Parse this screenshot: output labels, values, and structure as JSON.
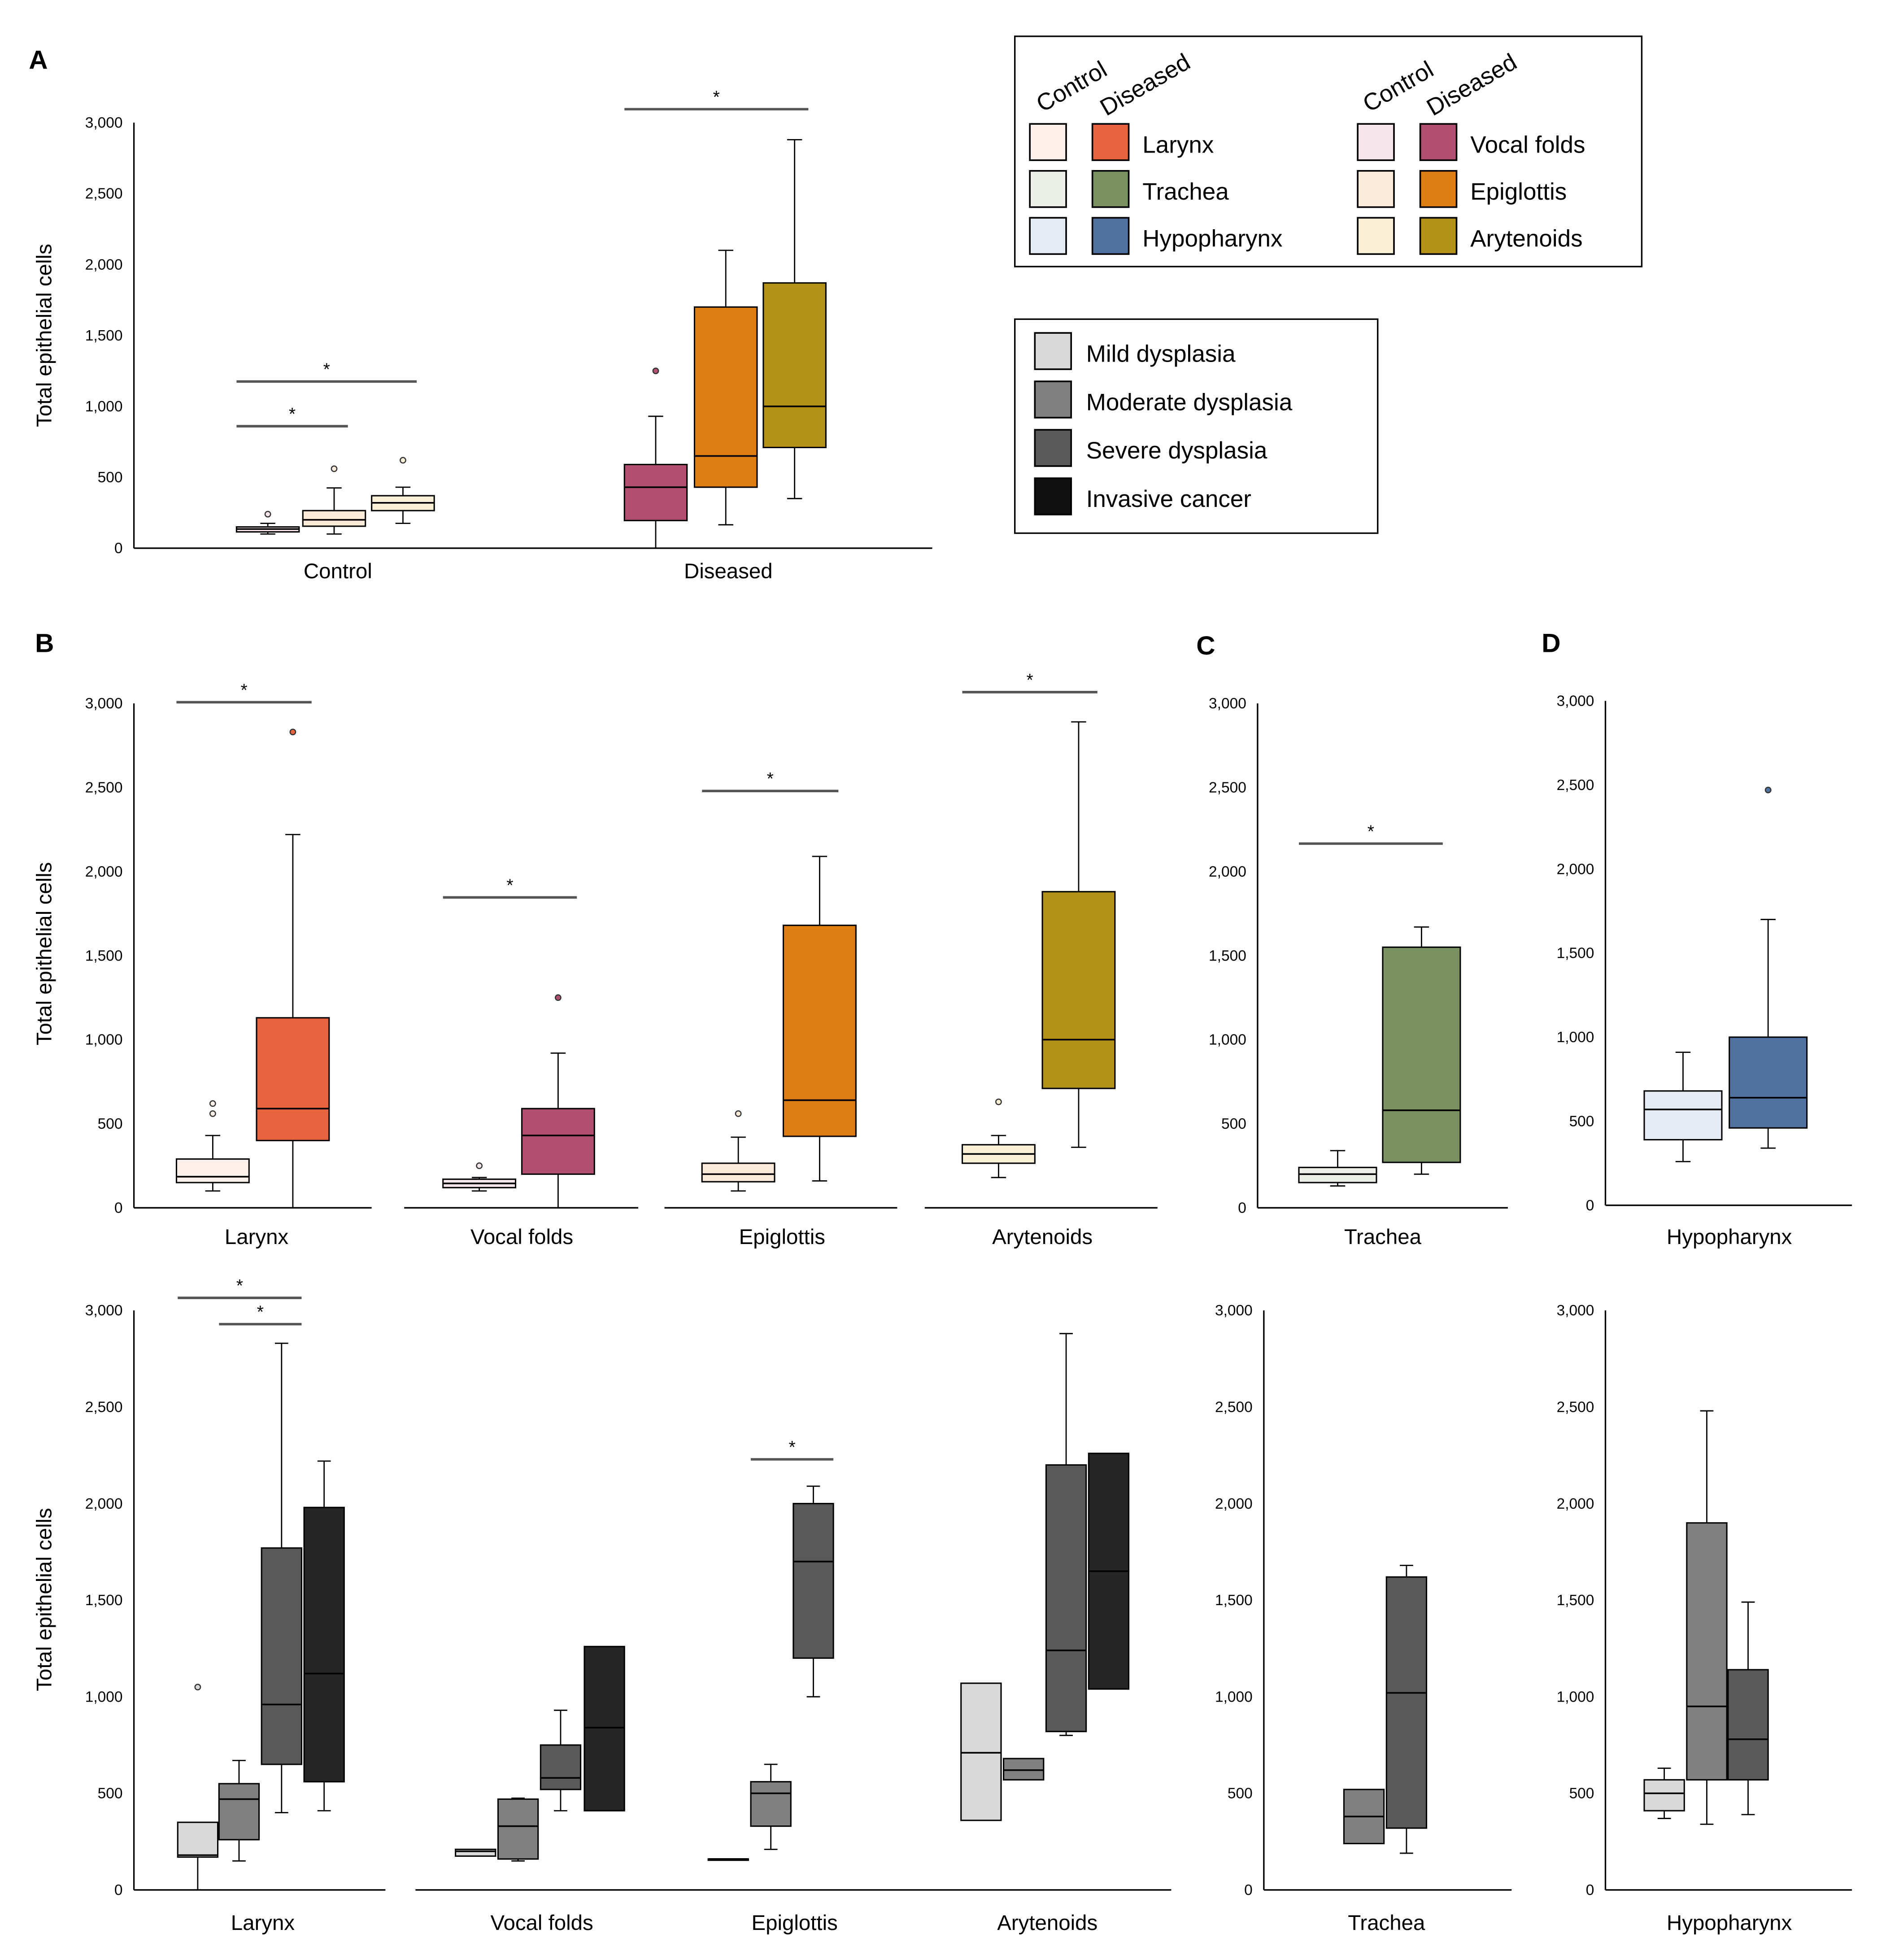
{
  "panel_letters": [
    "A",
    "B",
    "C",
    "D"
  ],
  "legend_tissue": {
    "headers": [
      "Control",
      "Diseased"
    ],
    "items": [
      {
        "label": "Larynx",
        "control": "#fdf0ea",
        "diseased": "#e8643f"
      },
      {
        "label": "Trachea",
        "control": "#eceee8",
        "diseased": "#7a9162"
      },
      {
        "label": "Hypopharynx",
        "control": "#e5ebf3",
        "diseased": "#4f72a1"
      },
      {
        "label": "Vocal folds",
        "control": "#f5e6ec",
        "diseased": "#b14f71"
      },
      {
        "label": "Epiglottis",
        "control": "#fdebd9",
        "diseased": "#dd7d12"
      },
      {
        "label": "Arytenoids",
        "control": "#faf0d5",
        "diseased": "#b39217"
      }
    ]
  },
  "legend_stage": {
    "items": [
      {
        "label": "Mild dysplasia",
        "color": "#d9d9d9"
      },
      {
        "label": "Moderate dysplasia",
        "color": "#808080"
      },
      {
        "label": "Severe dysplasia",
        "color": "#595959"
      },
      {
        "label": "Invasive cancer",
        "color": "#111111"
      }
    ]
  },
  "chart_data": [
    {
      "panel": "A",
      "type": "box",
      "ylabel": "Total epithelial cells",
      "ylim": [
        0,
        3000
      ],
      "yticks": [
        "0",
        "500",
        "1,000",
        "1,500",
        "2,000",
        "2,500",
        "3,000"
      ],
      "categories": [
        "Control",
        "Diseased"
      ],
      "boxes": [
        {
          "series": "Vocal folds control",
          "color": "#f5e6ec",
          "min": 100,
          "q1": 115,
          "median": 135,
          "q3": 150,
          "max": 175,
          "outliers": [
            240
          ]
        },
        {
          "series": "Epiglottis control",
          "color": "#fdebd9",
          "min": 100,
          "q1": 155,
          "median": 200,
          "q3": 265,
          "max": 425,
          "outliers": [
            560
          ]
        },
        {
          "series": "Arytenoids control",
          "color": "#faf0d5",
          "min": 175,
          "q1": 265,
          "median": 320,
          "q3": 370,
          "max": 430,
          "outliers": [
            620
          ]
        },
        {
          "series": "Vocal folds diseased",
          "color": "#b14f71",
          "min": 0,
          "q1": 195,
          "median": 430,
          "q3": 590,
          "max": 930,
          "outliers": [
            1250
          ]
        },
        {
          "series": "Epiglottis diseased",
          "color": "#dd7d12",
          "min": 165,
          "q1": 430,
          "median": 650,
          "q3": 1700,
          "max": 2100,
          "outliers": []
        },
        {
          "series": "Arytenoids diseased",
          "color": "#b39217",
          "min": 350,
          "q1": 710,
          "median": 1000,
          "q3": 1870,
          "max": 2880,
          "outliers": []
        }
      ],
      "significance": [
        {
          "from": 0,
          "to": 2,
          "level": 1175,
          "label": "*"
        },
        {
          "from": 0,
          "to": 1,
          "level": 860,
          "label": "*"
        },
        {
          "from": 3,
          "to": 5,
          "level": 3095,
          "label": "*"
        }
      ]
    },
    {
      "panel": "B",
      "type": "box",
      "ylabel": "Total epithelial cells",
      "ylim": [
        0,
        3000
      ],
      "yticks": [
        "0",
        "500",
        "1,000",
        "1,500",
        "2,000",
        "2,500",
        "3,000"
      ],
      "categories": [
        "Larynx",
        "Vocal folds",
        "Epiglottis",
        "Arytenoids"
      ],
      "boxes": [
        {
          "series": "Larynx control",
          "color": "#fdf0ea",
          "min": 100,
          "q1": 150,
          "median": 185,
          "q3": 290,
          "max": 430,
          "outliers": [
            560,
            620
          ]
        },
        {
          "series": "Larynx diseased",
          "color": "#e8643f",
          "min": 0,
          "q1": 400,
          "median": 590,
          "q3": 1130,
          "max": 2220,
          "outliers": [
            2830
          ]
        },
        {
          "series": "Vocal folds control",
          "color": "#f5e6ec",
          "min": 100,
          "q1": 120,
          "median": 145,
          "q3": 170,
          "max": 180,
          "outliers": [
            250
          ]
        },
        {
          "series": "Vocal folds diseased",
          "color": "#b14f71",
          "min": 0,
          "q1": 200,
          "median": 430,
          "q3": 590,
          "max": 920,
          "outliers": [
            1250
          ]
        },
        {
          "series": "Epiglottis control",
          "color": "#fdebd9",
          "min": 100,
          "q1": 155,
          "median": 200,
          "q3": 265,
          "max": 420,
          "outliers": [
            560
          ]
        },
        {
          "series": "Epiglottis diseased",
          "color": "#dd7d12",
          "min": 160,
          "q1": 425,
          "median": 640,
          "q3": 1680,
          "max": 2090,
          "outliers": []
        },
        {
          "series": "Arytenoids control",
          "color": "#faf0d5",
          "min": 180,
          "q1": 265,
          "median": 320,
          "q3": 375,
          "max": 430,
          "outliers": [
            630
          ]
        },
        {
          "series": "Arytenoids diseased",
          "color": "#b39217",
          "min": 360,
          "q1": 710,
          "median": 1000,
          "q3": 1880,
          "max": 2890,
          "outliers": []
        }
      ],
      "significance": [
        {
          "from": 0,
          "to": 1,
          "level": 3007,
          "label": "*"
        },
        {
          "from": 2,
          "to": 3,
          "level": 1846,
          "label": "*"
        },
        {
          "from": 4,
          "to": 5,
          "level": 2479,
          "label": "*"
        },
        {
          "from": 6,
          "to": 7,
          "level": 3067,
          "label": "*"
        }
      ]
    },
    {
      "panel": "C",
      "type": "box",
      "ylim": [
        0,
        3000
      ],
      "yticks": [
        "0",
        "500",
        "1,000",
        "1,500",
        "2,000",
        "2,500",
        "3,000"
      ],
      "categories": [
        "Trachea"
      ],
      "boxes": [
        {
          "series": "Trachea control",
          "color": "#eceee8",
          "min": 130,
          "q1": 150,
          "median": 200,
          "q3": 240,
          "max": 340,
          "outliers": []
        },
        {
          "series": "Trachea diseased",
          "color": "#7a9162",
          "min": 200,
          "q1": 270,
          "median": 580,
          "q3": 1550,
          "max": 1670,
          "outliers": []
        }
      ],
      "significance": [
        {
          "from": 0,
          "to": 1,
          "level": 2166,
          "label": "*"
        }
      ]
    },
    {
      "panel": "D",
      "type": "box",
      "ylim": [
        0,
        3000
      ],
      "yticks": [
        "0",
        "500",
        "1,000",
        "1,500",
        "2,000",
        "2,500",
        "3,000"
      ],
      "categories": [
        "Hypopharynx"
      ],
      "boxes": [
        {
          "series": "Hypopharynx control",
          "color": "#e5ebf3",
          "min": 260,
          "q1": 390,
          "median": 570,
          "q3": 680,
          "max": 910,
          "outliers": []
        },
        {
          "series": "Hypopharynx diseased",
          "color": "#4f72a1",
          "min": 340,
          "q1": 460,
          "median": 640,
          "q3": 1000,
          "max": 1700,
          "outliers": [
            2470
          ]
        }
      ],
      "significance": []
    },
    {
      "panel": "B-stage",
      "type": "box",
      "ylabel": "Total epithelial cells",
      "ylim": [
        0,
        3000
      ],
      "yticks": [
        "0",
        "500",
        "1,000",
        "1,500",
        "2,000",
        "2,500",
        "3,000"
      ],
      "categories": [
        "Larynx",
        "Vocal folds",
        "Epiglottis",
        "Arytenoids"
      ],
      "boxes": [
        {
          "series": "Larynx mild",
          "color": "#d9d9d9",
          "min": 0,
          "q1": 170,
          "median": 180,
          "q3": 350,
          "max": 350,
          "outliers": [
            1050
          ]
        },
        {
          "series": "Larynx moderate",
          "color": "#808080",
          "min": 150,
          "q1": 260,
          "median": 470,
          "q3": 550,
          "max": 670,
          "outliers": []
        },
        {
          "series": "Larynx severe",
          "color": "#595959",
          "min": 400,
          "q1": 650,
          "median": 960,
          "q3": 1770,
          "max": 2830,
          "outliers": []
        },
        {
          "series": "Larynx invasive",
          "color": "#262626",
          "min": 410,
          "q1": 560,
          "median": 1120,
          "q3": 1980,
          "max": 2220,
          "outliers": []
        },
        {
          "series": "Vocal folds mild",
          "color": "#d9d9d9",
          "min": 175,
          "q1": 175,
          "median": 200,
          "q3": 210,
          "max": 210,
          "outliers": []
        },
        {
          "series": "Vocal folds moderate",
          "color": "#808080",
          "min": 150,
          "q1": 160,
          "median": 330,
          "q3": 470,
          "max": 475,
          "outliers": []
        },
        {
          "series": "Vocal folds severe",
          "color": "#595959",
          "min": 410,
          "q1": 520,
          "median": 580,
          "q3": 750,
          "max": 930,
          "outliers": []
        },
        {
          "series": "Vocal folds invasive",
          "color": "#262626",
          "min": 410,
          "q1": 410,
          "median": 840,
          "q3": 1260,
          "max": 1260,
          "outliers": []
        },
        {
          "series": "Epiglottis mild",
          "color": "#d9d9d9",
          "min": 160,
          "q1": 160,
          "median": 160,
          "q3": 160,
          "max": 160,
          "outliers": []
        },
        {
          "series": "Epiglottis moderate",
          "color": "#808080",
          "min": 210,
          "q1": 330,
          "median": 500,
          "q3": 560,
          "max": 650,
          "outliers": []
        },
        {
          "series": "Epiglottis severe",
          "color": "#595959",
          "min": 1000,
          "q1": 1200,
          "median": 1700,
          "q3": 2000,
          "max": 2090,
          "outliers": []
        },
        {
          "series": "Arytenoids mild",
          "color": "#d9d9d9",
          "min": 360,
          "q1": 360,
          "median": 710,
          "q3": 1070,
          "max": 1070,
          "outliers": []
        },
        {
          "series": "Arytenoids moderate",
          "color": "#808080",
          "min": 570,
          "q1": 570,
          "median": 620,
          "q3": 680,
          "max": 680,
          "outliers": []
        },
        {
          "series": "Arytenoids severe",
          "color": "#595959",
          "min": 800,
          "q1": 820,
          "median": 1240,
          "q3": 2200,
          "max": 2880,
          "outliers": []
        },
        {
          "series": "Arytenoids invasive",
          "color": "#262626",
          "min": 1040,
          "q1": 1040,
          "median": 1650,
          "q3": 2260,
          "max": 2260,
          "outliers": []
        }
      ],
      "significance": [
        {
          "from": 0,
          "to": 2,
          "level": 3065,
          "label": "*"
        },
        {
          "from": 1,
          "to": 2,
          "level": 2929,
          "label": "*"
        },
        {
          "from": 9,
          "to": 10,
          "level": 2229,
          "label": "*"
        }
      ]
    },
    {
      "panel": "C-stage",
      "type": "box",
      "ylim": [
        0,
        3000
      ],
      "yticks": [
        "0",
        "500",
        "1,000",
        "1,500",
        "2,000",
        "2,500",
        "3,000"
      ],
      "categories": [
        "Trachea"
      ],
      "boxes": [
        {
          "series": "Trachea moderate",
          "color": "#808080",
          "min": 240,
          "q1": 240,
          "median": 380,
          "q3": 520,
          "max": 520,
          "outliers": []
        },
        {
          "series": "Trachea severe",
          "color": "#595959",
          "min": 190,
          "q1": 320,
          "median": 1020,
          "q3": 1620,
          "max": 1680,
          "outliers": []
        }
      ],
      "significance": []
    },
    {
      "panel": "D-stage",
      "type": "box",
      "ylim": [
        0,
        3000
      ],
      "yticks": [
        "0",
        "500",
        "1,000",
        "1,500",
        "2,000",
        "2,500",
        "3,000"
      ],
      "categories": [
        "Hypopharynx"
      ],
      "boxes": [
        {
          "series": "Hypopharynx mild",
          "color": "#d9d9d9",
          "min": 370,
          "q1": 410,
          "median": 500,
          "q3": 570,
          "max": 630,
          "outliers": []
        },
        {
          "series": "Hypopharynx moderate",
          "color": "#808080",
          "min": 340,
          "q1": 570,
          "median": 950,
          "q3": 1900,
          "max": 2480,
          "outliers": []
        },
        {
          "series": "Hypopharynx severe",
          "color": "#595959",
          "min": 390,
          "q1": 570,
          "median": 780,
          "q3": 1140,
          "max": 1490,
          "outliers": []
        }
      ],
      "significance": []
    }
  ]
}
